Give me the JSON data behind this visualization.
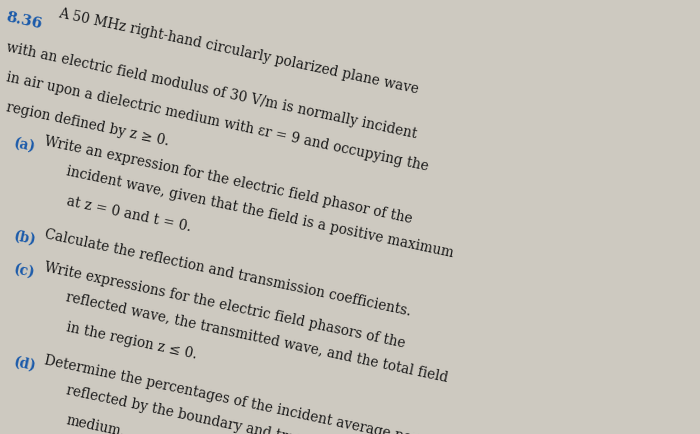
{
  "background_color": "#cdc9c0",
  "text_color": "#1a1a1a",
  "blue_color": "#1a5aaa",
  "fig_width": 7.0,
  "fig_height": 4.34,
  "problem_number": "8.36",
  "intro_line1": "   A 50 MHz right-hand circularly polarized plane wave",
  "intro_line2": "with an electric field modulus of 30 V/m is normally incident",
  "intro_line3": "in air upon a dielectric medium with εr = 9 and occupying the",
  "intro_line4": "region defined by z ≥ 0.",
  "part_a_label": "(a)",
  "part_a_line1": " Write an expression for the electric field phasor of the",
  "part_a_line2": "    incident wave, given that the field is a positive maximum",
  "part_a_line3": "    at z = 0 and t = 0.",
  "part_b_label": "(b)",
  "part_b_line1": " Calculate the reflection and transmission coefficients.",
  "part_c_label": "(c)",
  "part_c_line1": " Write expressions for the electric field phasors of the",
  "part_c_line2": "    reflected wave, the transmitted wave, and the total field",
  "part_c_line3": "    in the region z ≤ 0.",
  "part_d_label": "(d)",
  "part_d_line1": " Determine the percentages of the incident average power",
  "part_d_line2": "    reflected by the boundary and transmitted into the second",
  "part_d_line3": "    medium.",
  "font_size": 9.8,
  "skew_deg": -12
}
